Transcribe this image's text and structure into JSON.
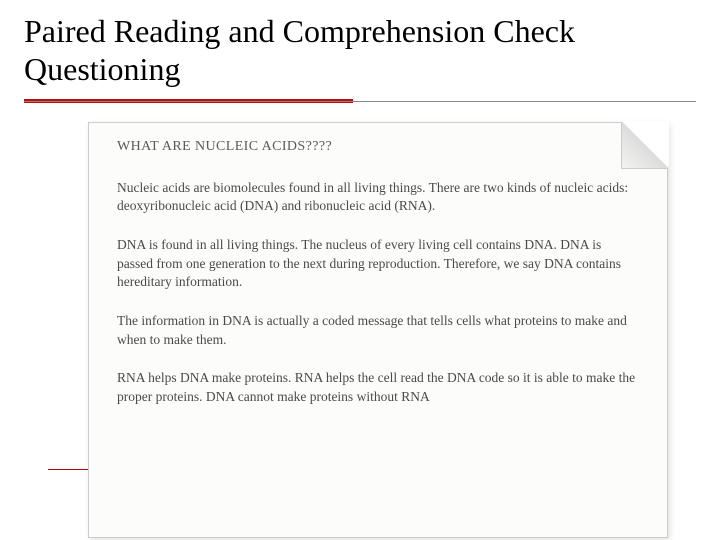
{
  "slide": {
    "title": "Paired Reading and Comprehension Check Questioning",
    "title_fontsize": 32,
    "title_color": "#000000",
    "divider_color": "#c20c0c",
    "background": "#ffffff"
  },
  "document": {
    "background": "#fcfcfa",
    "text_color": "#4a4a48",
    "heading_color": "#5a5a58",
    "heading": "WHAT ARE NUCLEIC ACIDS????",
    "heading_fontsize": 14,
    "para_fontsize": 13.5,
    "paragraphs": [
      "Nucleic acids are biomolecules found in all living things.  There are two kinds of nucleic acids:  deoxyribonucleic acid (DNA) and ribonucleic acid (RNA).",
      "DNA is found in all living things.  The nucleus of every living cell contains DNA.  DNA is passed from one generation to the next during reproduction.  Therefore, we say DNA contains hereditary information.",
      "The information in DNA is actually a coded message that tells cells what proteins to make and when to make them.",
      "RNA helps DNA make proteins.  RNA helps the cell read the DNA code so it is able to make the proper proteins.  DNA cannot make proteins without RNA"
    ]
  }
}
